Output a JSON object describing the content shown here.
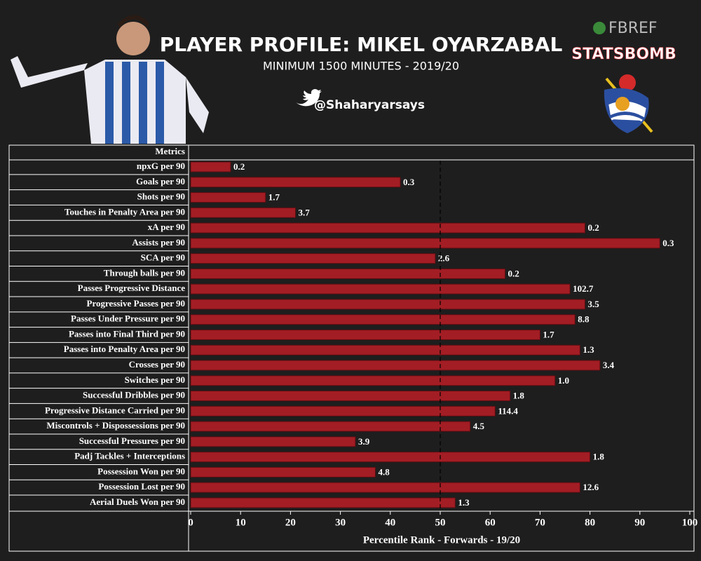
{
  "chart_data": {
    "type": "barh",
    "title": "PLAYER PROFILE: MIKEL OYARZABAL",
    "subtitle": "MINIMUM 1500 MINUTES - 2019/20",
    "handle": "@Shaharyarsays",
    "logos": [
      "FBREF",
      "STATSBOMB"
    ],
    "column_header": "Metrics",
    "xlabel": "Percentile Rank - Forwards - 19/20",
    "categories": [
      "npxG per 90",
      "Goals per 90",
      "Shots per 90",
      "Touches in Penalty Area per 90",
      "xA per 90",
      "Assists per 90",
      "SCA per 90",
      "Through balls per 90",
      "Passes Progressive Distance",
      "Progressive Passes per 90",
      "Passes Under Pressure per 90",
      "Passes into Final Third per 90",
      "Passes into Penalty Area per 90",
      "Crosses per 90",
      "Switches per 90",
      "Successful Dribbles per 90",
      "Progressive Distance Carried per 90",
      "Miscontrols + Dispossessions per 90",
      "Successful Pressures per 90",
      "Padj Tackles + Interceptions",
      "Possession Won per 90",
      "Possession Lost per 90",
      "Aerial Duels Won per 90"
    ],
    "values": [
      8,
      42,
      15,
      21,
      79,
      94,
      49,
      63,
      76,
      79,
      77,
      70,
      78,
      82,
      73,
      64,
      61,
      56,
      33,
      80,
      37,
      78,
      53
    ],
    "bar_labels": [
      "0.2",
      "0.3",
      "1.7",
      "3.7",
      "0.2",
      "0.3",
      "2.6",
      "0.2",
      "102.7",
      "3.5",
      "8.8",
      "1.7",
      "1.3",
      "3.4",
      "1.0",
      "1.8",
      "114.4",
      "4.5",
      "3.9",
      "1.8",
      "4.8",
      "12.6",
      "1.3"
    ],
    "color": "#a31d24",
    "reference_line": 50,
    "xlim": [
      0,
      100
    ],
    "xticks": [
      0,
      10,
      20,
      30,
      40,
      50,
      60,
      70,
      80,
      90,
      100
    ]
  }
}
